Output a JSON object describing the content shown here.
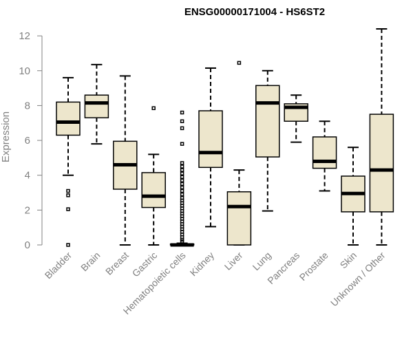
{
  "chart_data": {
    "type": "boxplot",
    "title": "ENSG00000171004 - HS6ST2",
    "xlabel": "",
    "ylabel": "Expression",
    "ylim": [
      0,
      12.4
    ],
    "yticks": [
      0,
      2,
      4,
      6,
      8,
      10,
      12
    ],
    "box_color": "#ede6cc",
    "categories": [
      "Bladder",
      "Brain",
      "Breast",
      "Gastric",
      "Hematopoietic cells",
      "Kidney",
      "Liver",
      "Lung",
      "Pancreas",
      "Prostate",
      "Skin",
      "Unknown / Other"
    ],
    "series": [
      {
        "name": "Bladder",
        "min": 4.0,
        "q1": 6.3,
        "median": 7.05,
        "q3": 8.2,
        "max": 9.6,
        "outliers": [
          3.1,
          2.85,
          2.05,
          0.0
        ]
      },
      {
        "name": "Brain",
        "min": 5.8,
        "q1": 7.3,
        "median": 8.15,
        "q3": 8.6,
        "max": 10.35,
        "outliers": []
      },
      {
        "name": "Breast",
        "min": 0.0,
        "q1": 3.2,
        "median": 4.6,
        "q3": 5.95,
        "max": 9.7,
        "outliers": []
      },
      {
        "name": "Gastric",
        "min": 0.0,
        "q1": 2.15,
        "median": 2.8,
        "q3": 4.15,
        "max": 5.2,
        "outliers": [
          7.85
        ]
      },
      {
        "name": "Hematopoietic cells",
        "min": 0.0,
        "q1": 0.0,
        "median": 0.0,
        "q3": 0.05,
        "max": 0.1,
        "outliers": [
          7.6,
          7.1,
          6.7,
          5.8,
          4.7,
          4.5,
          4.3,
          4.1,
          3.9,
          3.7,
          3.5,
          3.3,
          3.1,
          2.9,
          2.7,
          2.55,
          2.4,
          2.25,
          2.1,
          1.95,
          1.8,
          1.65,
          1.5,
          1.35,
          1.2,
          1.05,
          0.9,
          0.75,
          0.6,
          0.45,
          0.3,
          0.2
        ]
      },
      {
        "name": "Kidney",
        "min": 1.05,
        "q1": 4.45,
        "median": 5.3,
        "q3": 7.7,
        "max": 10.15,
        "outliers": []
      },
      {
        "name": "Liver",
        "min": 0.0,
        "q1": 0.0,
        "median": 2.2,
        "q3": 3.05,
        "max": 4.3,
        "outliers": [
          10.45
        ]
      },
      {
        "name": "Lung",
        "min": 1.95,
        "q1": 5.05,
        "median": 8.15,
        "q3": 9.15,
        "max": 10.0,
        "outliers": []
      },
      {
        "name": "Pancreas",
        "min": 5.9,
        "q1": 7.1,
        "median": 7.9,
        "q3": 8.1,
        "max": 8.6,
        "outliers": []
      },
      {
        "name": "Prostate",
        "min": 3.1,
        "q1": 4.4,
        "median": 4.8,
        "q3": 6.2,
        "max": 7.1,
        "outliers": []
      },
      {
        "name": "Skin",
        "min": 0.0,
        "q1": 1.9,
        "median": 2.95,
        "q3": 3.95,
        "max": 5.6,
        "outliers": []
      },
      {
        "name": "Unknown / Other",
        "min": 0.0,
        "q1": 1.9,
        "median": 4.3,
        "q3": 7.5,
        "max": 12.4,
        "outliers": []
      }
    ]
  }
}
